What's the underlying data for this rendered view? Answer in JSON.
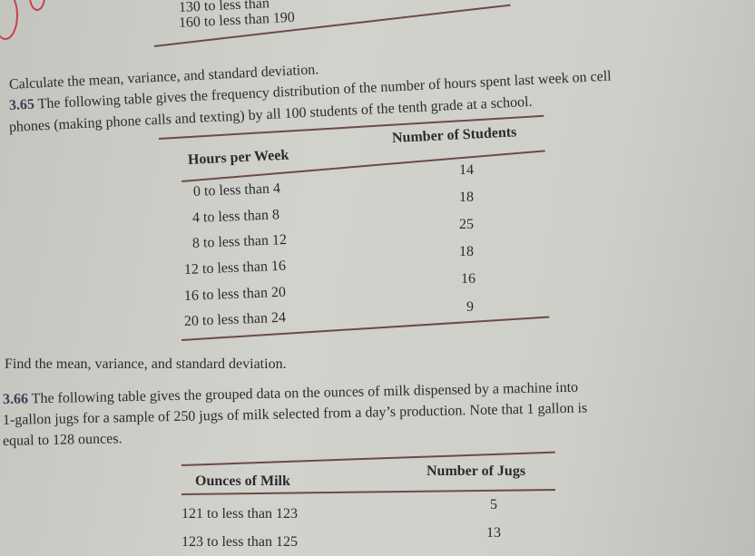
{
  "previous_table": {
    "rows": [
      "130 to less than",
      "160 to less than 190"
    ]
  },
  "previous_instruction": "Calculate the mean, variance, and standard deviation.",
  "problem_365": {
    "number": "3.65",
    "text_line1": "The following table gives the frequency distribution of the number of hours spent last week on cell",
    "text_line2": "phones (making phone calls and texting) by all 100 students of the tenth grade at a school.",
    "table": {
      "headers": [
        "Hours per Week",
        "Number of Students"
      ],
      "rows": [
        {
          "hours": "0 to less than  4",
          "students": "14"
        },
        {
          "hours": "4 to less than  8",
          "students": "18"
        },
        {
          "hours": "8 to less than 12",
          "students": "25"
        },
        {
          "hours": "12 to less than 16",
          "students": "18"
        },
        {
          "hours": "16 to less than 20",
          "students": "16"
        },
        {
          "hours": "20 to less than 24",
          "students": "9"
        }
      ]
    },
    "instruction": "Find the mean, variance, and standard deviation."
  },
  "problem_366": {
    "number": "3.66",
    "text_line1": "The following table gives the grouped data on the ounces of milk dispensed by a machine into",
    "text_line2": "1-gallon jugs for a sample of 250 jugs of milk selected from a day’s production. Note that 1 gallon is",
    "text_line3": "equal to 128 ounces.",
    "table": {
      "headers": [
        "Ounces of Milk",
        "Number of Jugs"
      ],
      "rows": [
        {
          "ounces": "121 to less than 123",
          "jugs": "5"
        },
        {
          "ounces": "123 to less than 125",
          "jugs": "13"
        }
      ]
    }
  },
  "colors": {
    "ink_annotation": "#c8404a",
    "rule": "#6e4a45",
    "paper": "#cfcfca",
    "text": "#2b2b2b"
  }
}
